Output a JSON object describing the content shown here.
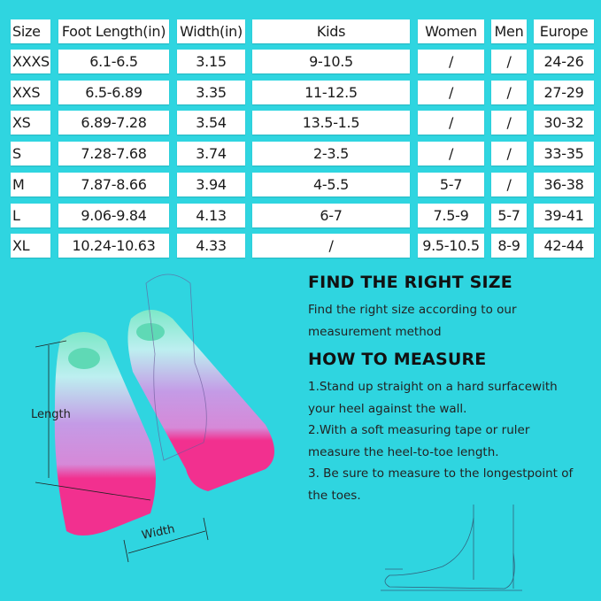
{
  "size_table": {
    "headers": [
      "Size",
      "Foot Length(in)",
      "Width(in)",
      "Kids",
      "Women",
      "Men",
      "Europe"
    ],
    "rows": [
      [
        "XXXS",
        "6.1-6.5",
        "3.15",
        "9-10.5",
        "/",
        "/",
        "24-26"
      ],
      [
        "XXS",
        "6.5-6.89",
        "3.35",
        "11-12.5",
        "/",
        "/",
        "27-29"
      ],
      [
        "XS",
        "6.89-7.28",
        "3.54",
        "13.5-1.5",
        "/",
        "/",
        "30-32"
      ],
      [
        "S",
        "7.28-7.68",
        "3.74",
        "2-3.5",
        "/",
        "/",
        "33-35"
      ],
      [
        "M",
        "7.87-8.66",
        "3.94",
        "4-5.5",
        "5-7",
        "/",
        "36-38"
      ],
      [
        "L",
        "9.06-9.84",
        "4.13",
        "6-7",
        "7.5-9",
        "5-7",
        "39-41"
      ],
      [
        "XL",
        "10.24-10.63",
        "4.33",
        "/",
        "9.5-10.5",
        "8-9",
        "42-44"
      ]
    ]
  },
  "guide": {
    "find_title": "FIND THE RIGHT SIZE",
    "find_text": "Find the right size according to our measurement method",
    "how_title": "HOW TO MEASURE",
    "steps": [
      "1.Stand up straight on a hard surfacewith your heel against the wall.",
      "2.With a soft measuring tape or ruler measure the heel-to-toe length.",
      "3. Be sure to measure to the longestpoint of the toes."
    ]
  },
  "illustration": {
    "length_label": "Length",
    "width_label": "Width",
    "colors": {
      "background": "#2fd5e0",
      "fin_mint": "#7de8c8",
      "fin_light": "#bdeff0",
      "fin_purple": "#c49be6",
      "fin_pink": "#f2308f"
    }
  }
}
